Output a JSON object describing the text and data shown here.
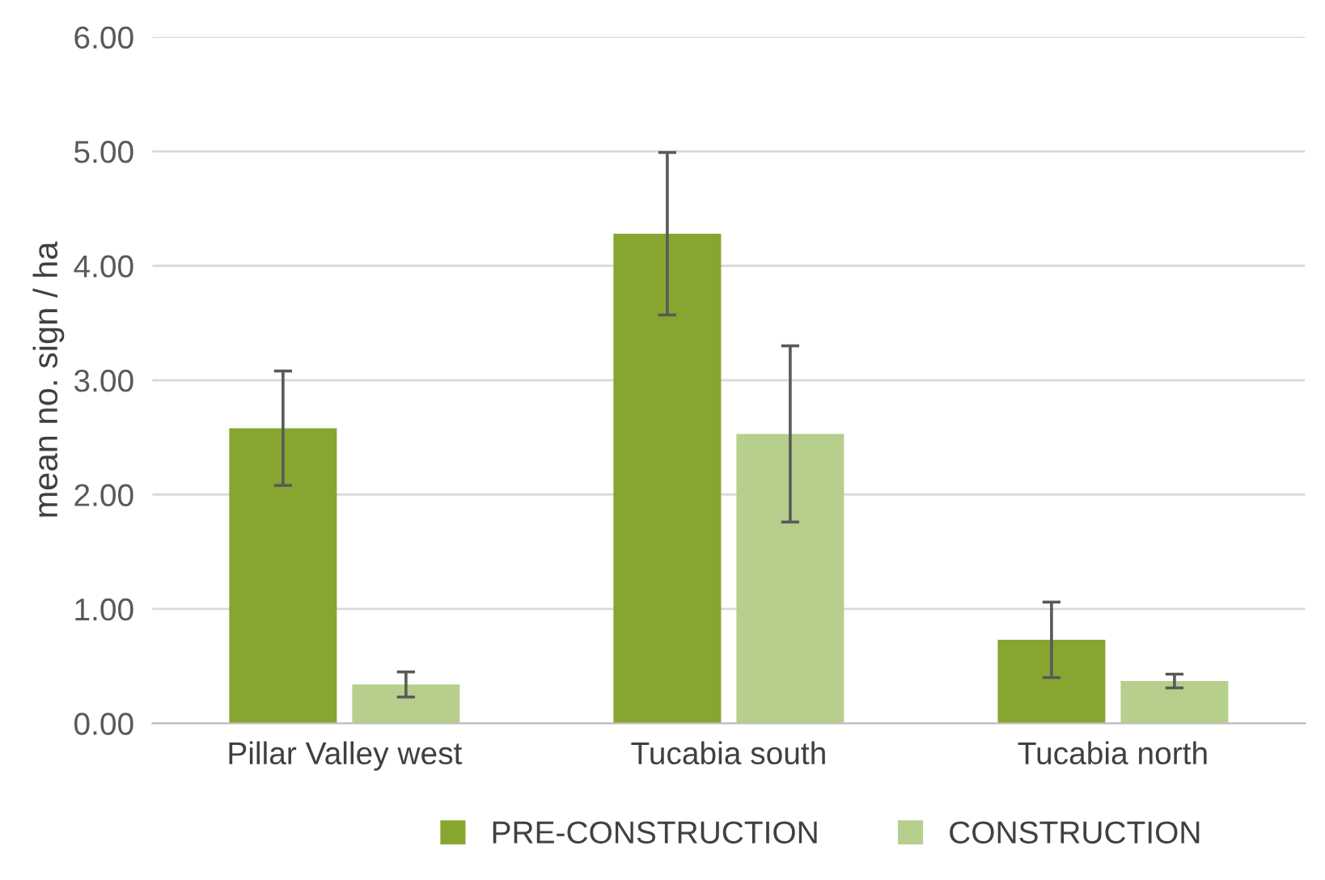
{
  "chart_data": {
    "type": "bar",
    "ylabel": "mean no. sign / ha",
    "categories": [
      "Pillar Valley west",
      "Tucabia south",
      "Tucabia north"
    ],
    "series": [
      {
        "name": "PRE-CONSTRUCTION",
        "color": "#86a62f",
        "values": [
          2.58,
          4.28,
          0.73
        ],
        "errors": [
          0.5,
          0.71,
          0.33
        ]
      },
      {
        "name": "CONSTRUCTION",
        "color": "#b6cf8c",
        "values": [
          0.34,
          2.53,
          0.37
        ],
        "errors": [
          0.11,
          0.77,
          0.06
        ]
      }
    ],
    "ylim": [
      0,
      6
    ],
    "yticks": [
      {
        "value": 0,
        "label": "0.00"
      },
      {
        "value": 1,
        "label": "1.00"
      },
      {
        "value": 2,
        "label": "2.00"
      },
      {
        "value": 3,
        "label": "3.00"
      },
      {
        "value": 4,
        "label": "4.00"
      },
      {
        "value": 5,
        "label": "5.00"
      },
      {
        "value": 6,
        "label": "6.00"
      }
    ],
    "grid": "y",
    "legend": "bottom"
  }
}
